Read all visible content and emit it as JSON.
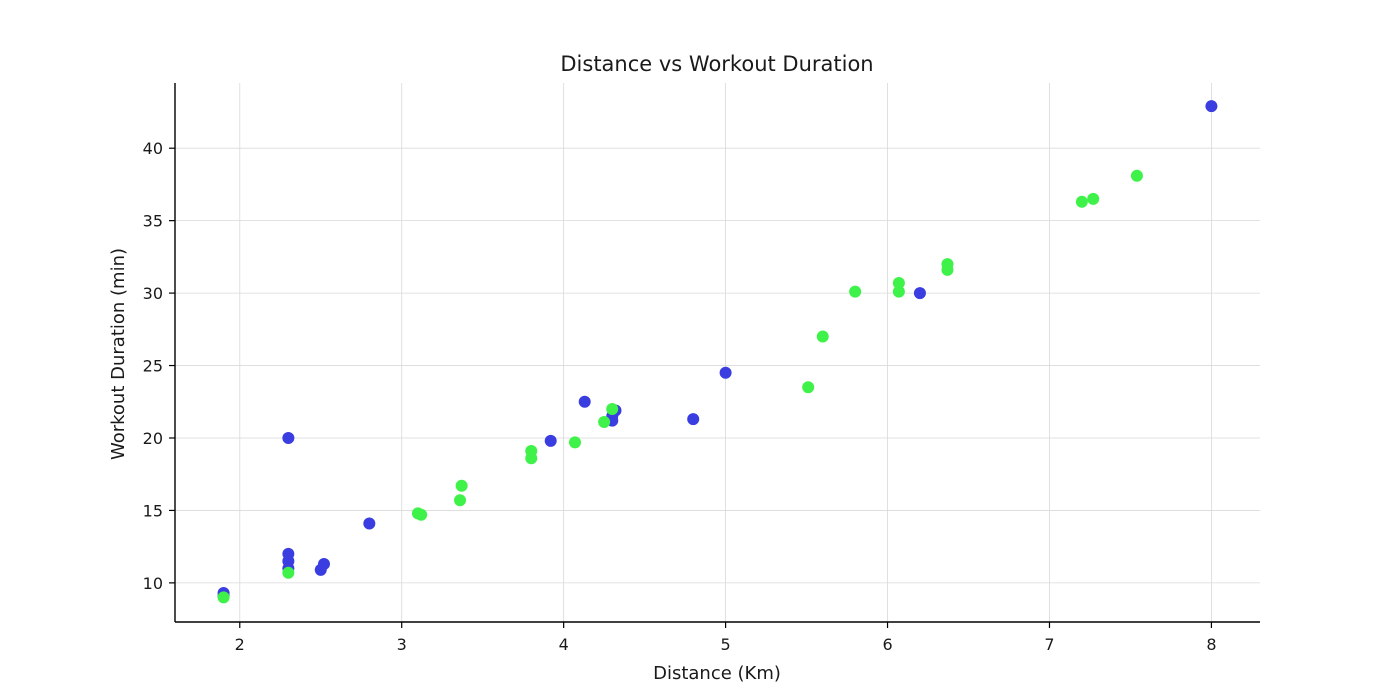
{
  "chart_data": {
    "type": "scatter",
    "title": "Distance vs Workout Duration",
    "xlabel": "Distance (Km)",
    "ylabel": "Workout Duration (min)",
    "xlim": [
      1.6,
      8.3
    ],
    "ylim": [
      7.3,
      44.5
    ],
    "xticks": [
      2,
      3,
      4,
      5,
      6,
      7,
      8
    ],
    "yticks": [
      10,
      15,
      20,
      25,
      30,
      35,
      40
    ],
    "grid": true,
    "legend": "none",
    "series": [
      {
        "color": "#3a3de0",
        "points": [
          [
            1.9,
            9.1
          ],
          [
            1.9,
            9.3
          ],
          [
            2.3,
            20.0
          ],
          [
            2.3,
            12.0
          ],
          [
            2.3,
            11.5
          ],
          [
            2.3,
            11.0
          ],
          [
            2.5,
            10.9
          ],
          [
            2.52,
            11.3
          ],
          [
            2.8,
            14.1
          ],
          [
            3.92,
            19.8
          ],
          [
            4.13,
            22.5
          ],
          [
            4.3,
            21.2
          ],
          [
            4.3,
            21.5
          ],
          [
            4.32,
            21.9
          ],
          [
            4.8,
            21.3
          ],
          [
            5.0,
            24.5
          ],
          [
            6.2,
            30.0
          ],
          [
            8.0,
            42.9
          ]
        ]
      },
      {
        "color": "#3ff24a",
        "points": [
          [
            1.9,
            9.0
          ],
          [
            2.3,
            10.7
          ],
          [
            3.1,
            14.8
          ],
          [
            3.12,
            14.7
          ],
          [
            3.36,
            15.7
          ],
          [
            3.37,
            16.7
          ],
          [
            3.8,
            18.6
          ],
          [
            3.8,
            19.1
          ],
          [
            4.07,
            19.7
          ],
          [
            4.25,
            21.1
          ],
          [
            4.3,
            22.0
          ],
          [
            5.51,
            23.5
          ],
          [
            5.6,
            27.0
          ],
          [
            5.8,
            30.1
          ],
          [
            6.07,
            30.7
          ],
          [
            6.07,
            30.1
          ],
          [
            6.37,
            31.6
          ],
          [
            6.37,
            32.0
          ],
          [
            7.2,
            36.3
          ],
          [
            7.27,
            36.5
          ],
          [
            7.54,
            38.1
          ]
        ]
      }
    ]
  }
}
